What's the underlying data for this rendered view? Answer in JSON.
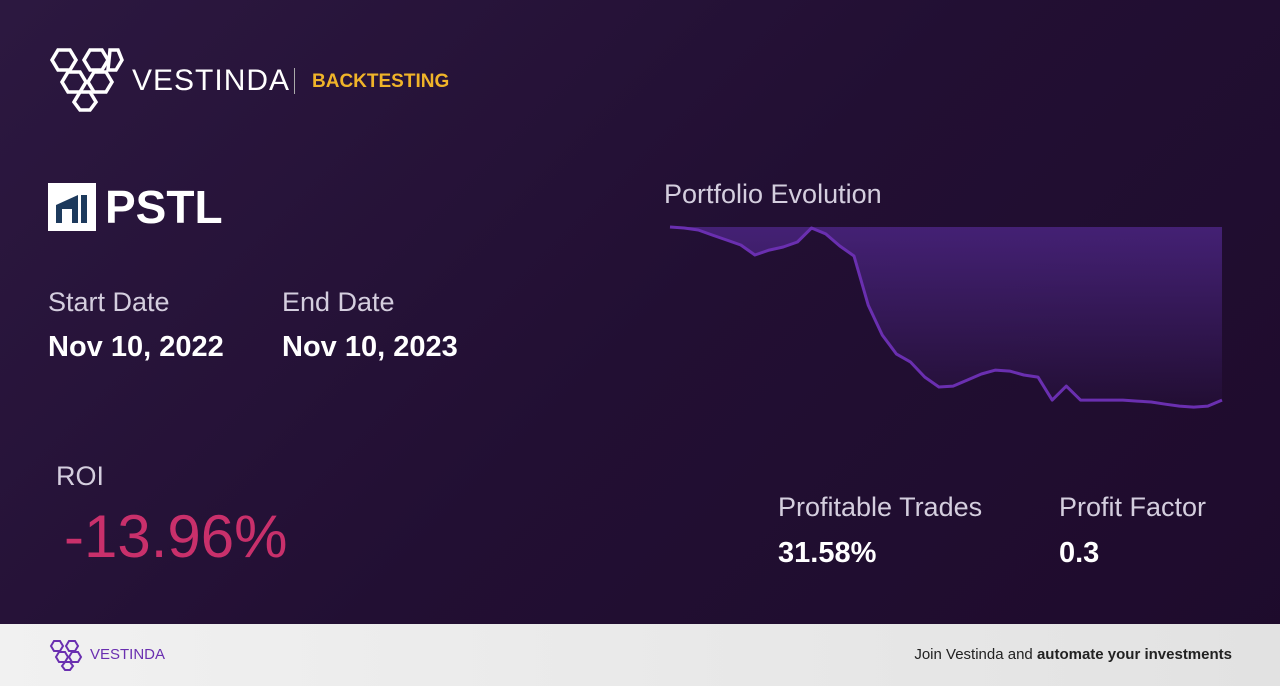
{
  "header": {
    "brand": "VESTINDA",
    "section": "BACKTESTING"
  },
  "ticker": "PSTL",
  "start_date": {
    "label": "Start Date",
    "value": "Nov 10, 2022"
  },
  "end_date": {
    "label": "End Date",
    "value": "Nov 10, 2023"
  },
  "roi": {
    "label": "ROI",
    "value": "-13.96%"
  },
  "profitable_trades": {
    "label": "Profitable Trades",
    "value": "31.58%"
  },
  "profit_factor": {
    "label": "Profit Factor",
    "value": "0.3"
  },
  "chart": {
    "type": "line",
    "title": "Portfolio Evolution",
    "color": "#6a2fb0",
    "values": [
      100,
      99.92,
      99.76,
      99.35,
      98.95,
      98.55,
      97.74,
      98.14,
      98.39,
      98.79,
      99.92,
      99.44,
      98.47,
      97.66,
      93.7,
      91.28,
      89.75,
      89.1,
      87.89,
      87.09,
      87.17,
      87.65,
      88.14,
      88.46,
      88.38,
      88.06,
      87.89,
      86.04,
      87.17,
      86.04,
      86.04,
      86.04,
      86.04,
      85.96,
      85.88,
      85.71,
      85.55,
      85.47,
      85.55,
      86.04
    ],
    "ylim": [
      85.4,
      100
    ]
  },
  "footer": {
    "brand": "VESTINDA",
    "text": "Join Vestinda and",
    "bold": "automate your investments"
  }
}
